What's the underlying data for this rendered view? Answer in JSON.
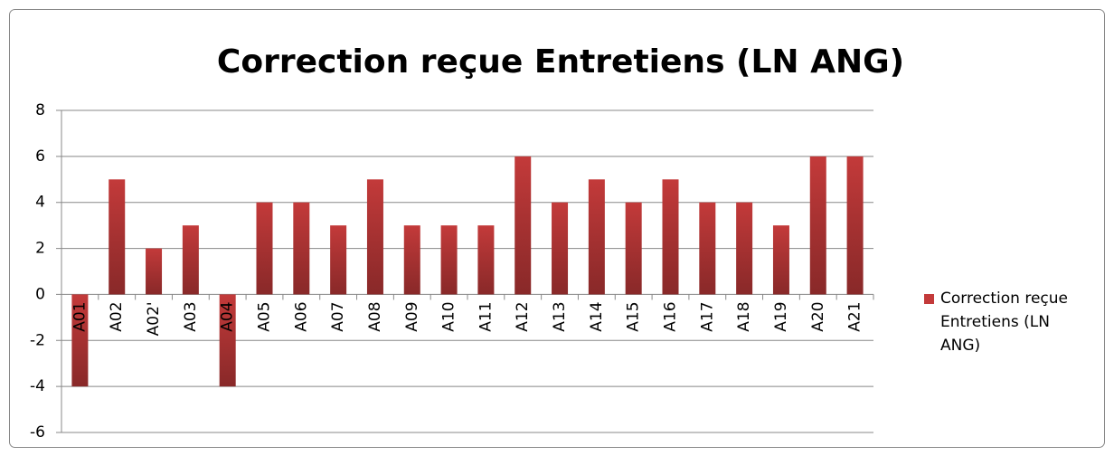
{
  "chart_data": {
    "type": "bar",
    "title": "Correction reçue Entretiens (LN ANG)",
    "categories": [
      "A01",
      "A02",
      "A02'",
      "A03",
      "A04",
      "A05",
      "A06",
      "A07",
      "A08",
      "A09",
      "A10",
      "A11",
      "A12",
      "A13",
      "A14",
      "A15",
      "A16",
      "A17",
      "A18",
      "A19",
      "A20",
      "A21"
    ],
    "series": [
      {
        "name": "Correction reçue Entretiens (LN ANG)",
        "color": "#c33a3a",
        "values": [
          -4,
          5,
          2,
          3,
          -4,
          4,
          4,
          3,
          5,
          3,
          3,
          3,
          6,
          4,
          5,
          4,
          5,
          4,
          4,
          3,
          6,
          6
        ]
      }
    ],
    "ylim": [
      -6,
      8
    ],
    "yticks": [
      -6,
      -4,
      -2,
      0,
      2,
      4,
      6,
      8
    ],
    "grid": true,
    "legend": "right"
  }
}
